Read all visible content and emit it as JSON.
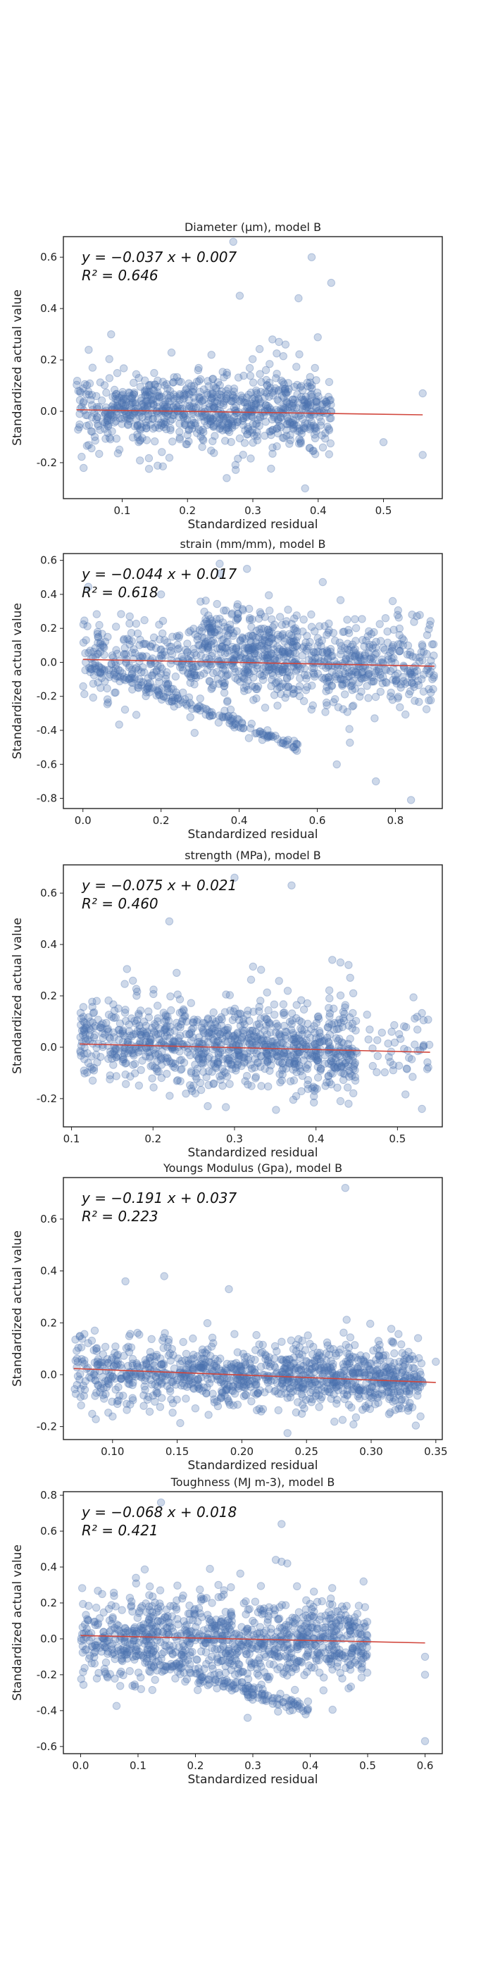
{
  "chart_data": [
    {
      "type": "scatter",
      "title": "Diameter (μm), model B",
      "xlabel": "Standardized residual",
      "ylabel": "Standardized actual value",
      "xlim": [
        0.01,
        0.59
      ],
      "ylim": [
        -0.34,
        0.68
      ],
      "xticks": [
        0.1,
        0.2,
        0.3,
        0.4,
        0.5
      ],
      "yticks": [
        -0.2,
        0.0,
        0.2,
        0.4,
        0.6
      ],
      "tick_decimals": 1,
      "fit": {
        "slope": -0.037,
        "intercept": 0.007,
        "r2": 0.646
      },
      "equation_text": "y = −0.037 x + 0.007",
      "r2_text": "R² = 0.646",
      "outliers": [
        [
          0.27,
          0.66
        ],
        [
          0.39,
          0.6
        ],
        [
          0.37,
          0.44
        ],
        [
          0.42,
          0.5
        ],
        [
          0.28,
          0.45
        ],
        [
          0.33,
          0.28
        ],
        [
          0.34,
          0.27
        ],
        [
          0.35,
          0.26
        ],
        [
          0.56,
          -0.17
        ],
        [
          0.56,
          0.07
        ],
        [
          0.38,
          -0.3
        ],
        [
          0.26,
          -0.26
        ],
        [
          0.5,
          -0.12
        ]
      ],
      "clusters": [
        {
          "x": [
            0.03,
            0.42
          ],
          "y_center_at_xmin": 0.01,
          "y_center_at_xmax": 0.0,
          "spread": 0.08,
          "n": 900
        }
      ]
    },
    {
      "type": "scatter",
      "title": "strain (mm/mm), model B",
      "xlabel": "Standardized residual",
      "ylabel": "Standardized actual value",
      "xlim": [
        -0.05,
        0.92
      ],
      "ylim": [
        -0.86,
        0.64
      ],
      "xticks": [
        0.0,
        0.2,
        0.4,
        0.6,
        0.8
      ],
      "yticks": [
        -0.8,
        -0.6,
        -0.4,
        -0.2,
        0.0,
        0.2,
        0.4,
        0.6
      ],
      "tick_decimals": 1,
      "fit": {
        "slope": -0.044,
        "intercept": 0.017,
        "r2": 0.618
      },
      "equation_text": "y = −0.044 x + 0.017",
      "r2_text": "R² = 0.618",
      "outliers": [
        [
          0.84,
          -0.81
        ],
        [
          0.42,
          0.55
        ],
        [
          0.35,
          0.58
        ],
        [
          0.2,
          0.4
        ],
        [
          0.75,
          -0.7
        ],
        [
          0.65,
          -0.6
        ]
      ],
      "clusters": [
        {
          "x": [
            0.0,
            0.9
          ],
          "y_center_at_xmin": 0.02,
          "y_center_at_xmax": -0.02,
          "spread": 0.14,
          "n": 900
        },
        {
          "x": [
            0.0,
            0.55
          ],
          "y_center_at_xmin": 0.0,
          "y_center_at_xmax": -0.5,
          "spread": 0.02,
          "n": 160
        },
        {
          "x": [
            0.3,
            0.55
          ],
          "y_center_at_xmin": 0.2,
          "y_center_at_xmax": 0.0,
          "spread": 0.12,
          "n": 180
        }
      ]
    },
    {
      "type": "scatter",
      "title": "strength (MPa), model B",
      "xlabel": "Standardized residual",
      "ylabel": "Standardized actual value",
      "xlim": [
        0.09,
        0.555
      ],
      "ylim": [
        -0.31,
        0.71
      ],
      "xticks": [
        0.1,
        0.2,
        0.3,
        0.4,
        0.5
      ],
      "yticks": [
        -0.2,
        0.0,
        0.2,
        0.4,
        0.6
      ],
      "tick_decimals": 1,
      "fit": {
        "slope": -0.075,
        "intercept": 0.021,
        "r2": 0.46
      },
      "equation_text": "y = −0.075 x + 0.021",
      "r2_text": "R² = 0.460",
      "outliers": [
        [
          0.3,
          0.66
        ],
        [
          0.37,
          0.63
        ],
        [
          0.22,
          0.49
        ],
        [
          0.42,
          0.34
        ],
        [
          0.43,
          0.33
        ],
        [
          0.44,
          0.32
        ],
        [
          0.53,
          -0.24
        ],
        [
          0.43,
          -0.21
        ],
        [
          0.44,
          -0.22
        ]
      ],
      "clusters": [
        {
          "x": [
            0.11,
            0.45
          ],
          "y_center_at_xmin": 0.02,
          "y_center_at_xmax": -0.01,
          "spread": 0.09,
          "n": 1000
        },
        {
          "x": [
            0.45,
            0.54
          ],
          "y_center_at_xmin": 0.0,
          "y_center_at_xmax": -0.02,
          "spread": 0.08,
          "n": 50
        }
      ]
    },
    {
      "type": "scatter",
      "title": "Youngs Modulus (Gpa), model B",
      "xlabel": "Standardized residual",
      "ylabel": "Standardized actual value",
      "xlim": [
        0.062,
        0.355
      ],
      "ylim": [
        -0.25,
        0.76
      ],
      "xticks": [
        0.1,
        0.15,
        0.2,
        0.25,
        0.3,
        0.35
      ],
      "yticks": [
        -0.2,
        0.0,
        0.2,
        0.4,
        0.6
      ],
      "tick_decimals": 2,
      "fit": {
        "slope": -0.191,
        "intercept": 0.037,
        "r2": 0.223
      },
      "equation_text": "y = −0.191 x + 0.037",
      "r2_text": "R² = 0.223",
      "outliers": [
        [
          0.28,
          0.72
        ],
        [
          0.14,
          0.38
        ],
        [
          0.11,
          0.36
        ],
        [
          0.19,
          0.33
        ],
        [
          0.35,
          0.05
        ],
        [
          0.33,
          0.06
        ]
      ],
      "clusters": [
        {
          "x": [
            0.07,
            0.34
          ],
          "y_center_at_xmin": 0.02,
          "y_center_at_xmax": -0.02,
          "spread": 0.07,
          "n": 1100
        }
      ]
    },
    {
      "type": "scatter",
      "title": "Toughness (MJ m-3), model B",
      "xlabel": "Standardized residual",
      "ylabel": "Standardized actual value",
      "xlim": [
        -0.03,
        0.63
      ],
      "ylim": [
        -0.64,
        0.82
      ],
      "xticks": [
        0.0,
        0.1,
        0.2,
        0.3,
        0.4,
        0.5,
        0.6
      ],
      "yticks": [
        -0.6,
        -0.4,
        -0.2,
        0.0,
        0.2,
        0.4,
        0.6,
        0.8
      ],
      "tick_decimals": 1,
      "fit": {
        "slope": -0.068,
        "intercept": 0.018,
        "r2": 0.421
      },
      "equation_text": "y = −0.068 x + 0.018",
      "r2_text": "R² = 0.421",
      "outliers": [
        [
          0.14,
          0.76
        ],
        [
          0.35,
          0.64
        ],
        [
          0.6,
          -0.57
        ],
        [
          0.6,
          -0.1
        ],
        [
          0.6,
          -0.2
        ],
        [
          0.34,
          0.44
        ],
        [
          0.35,
          0.43
        ],
        [
          0.36,
          0.42
        ]
      ],
      "clusters": [
        {
          "x": [
            0.0,
            0.5
          ],
          "y_center_at_xmin": 0.02,
          "y_center_at_xmax": -0.02,
          "spread": 0.13,
          "n": 1000
        },
        {
          "x": [
            0.0,
            0.4
          ],
          "y_center_at_xmin": 0.0,
          "y_center_at_xmax": -0.4,
          "spread": 0.02,
          "n": 160
        }
      ]
    }
  ]
}
